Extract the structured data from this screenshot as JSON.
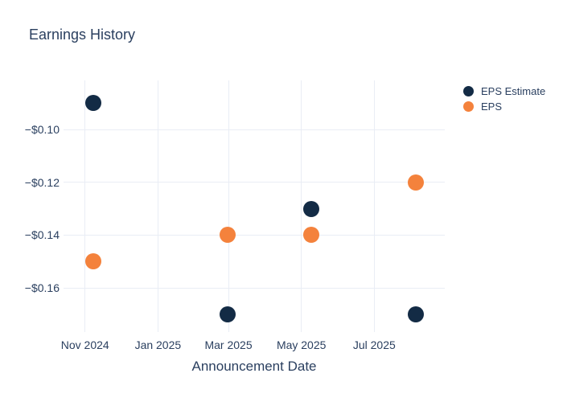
{
  "title": "Earnings History",
  "colors": {
    "text": "#2a3f5f",
    "grid": "#e9edf5",
    "background": "#ffffff",
    "eps_estimate": "#132b45",
    "eps": "#f4823c"
  },
  "legend": {
    "items": [
      {
        "label": "EPS Estimate",
        "color": "#132b45"
      },
      {
        "label": "EPS",
        "color": "#f4823c"
      }
    ]
  },
  "chart_data": {
    "type": "scatter",
    "title": "Earnings History",
    "xlabel": "Announcement Date",
    "ylabel": "",
    "grid": true,
    "legend_position": "right-top",
    "marker_diameter_px": 20,
    "x_axis": {
      "type": "date",
      "range": [
        "2024-10-14",
        "2025-08-29"
      ],
      "ticks": [
        {
          "date": "2024-11-01",
          "label": "Nov 2024"
        },
        {
          "date": "2025-01-01",
          "label": "Jan 2025"
        },
        {
          "date": "2025-03-01",
          "label": "Mar 2025"
        },
        {
          "date": "2025-05-01",
          "label": "May 2025"
        },
        {
          "date": "2025-07-01",
          "label": "Jul 2025"
        }
      ]
    },
    "y_axis": {
      "range": [
        -0.1767,
        -0.0814
      ],
      "ticks": [
        {
          "value": -0.1,
          "label": "−$0.10"
        },
        {
          "value": -0.12,
          "label": "−$0.12"
        },
        {
          "value": -0.14,
          "label": "−$0.14"
        },
        {
          "value": -0.16,
          "label": "−$0.16"
        }
      ]
    },
    "series": [
      {
        "name": "EPS Estimate",
        "color": "#132b45",
        "marker": "circle",
        "points": [
          {
            "date": "2024-11-08",
            "value": -0.09
          },
          {
            "date": "2025-02-28",
            "value": -0.17
          },
          {
            "date": "2025-05-09",
            "value": -0.13
          },
          {
            "date": "2025-08-05",
            "value": -0.17
          }
        ]
      },
      {
        "name": "EPS",
        "color": "#f4823c",
        "marker": "circle",
        "points": [
          {
            "date": "2024-11-08",
            "value": -0.15
          },
          {
            "date": "2025-02-28",
            "value": -0.14
          },
          {
            "date": "2025-05-09",
            "value": -0.14
          },
          {
            "date": "2025-08-05",
            "value": -0.12
          }
        ]
      }
    ]
  }
}
